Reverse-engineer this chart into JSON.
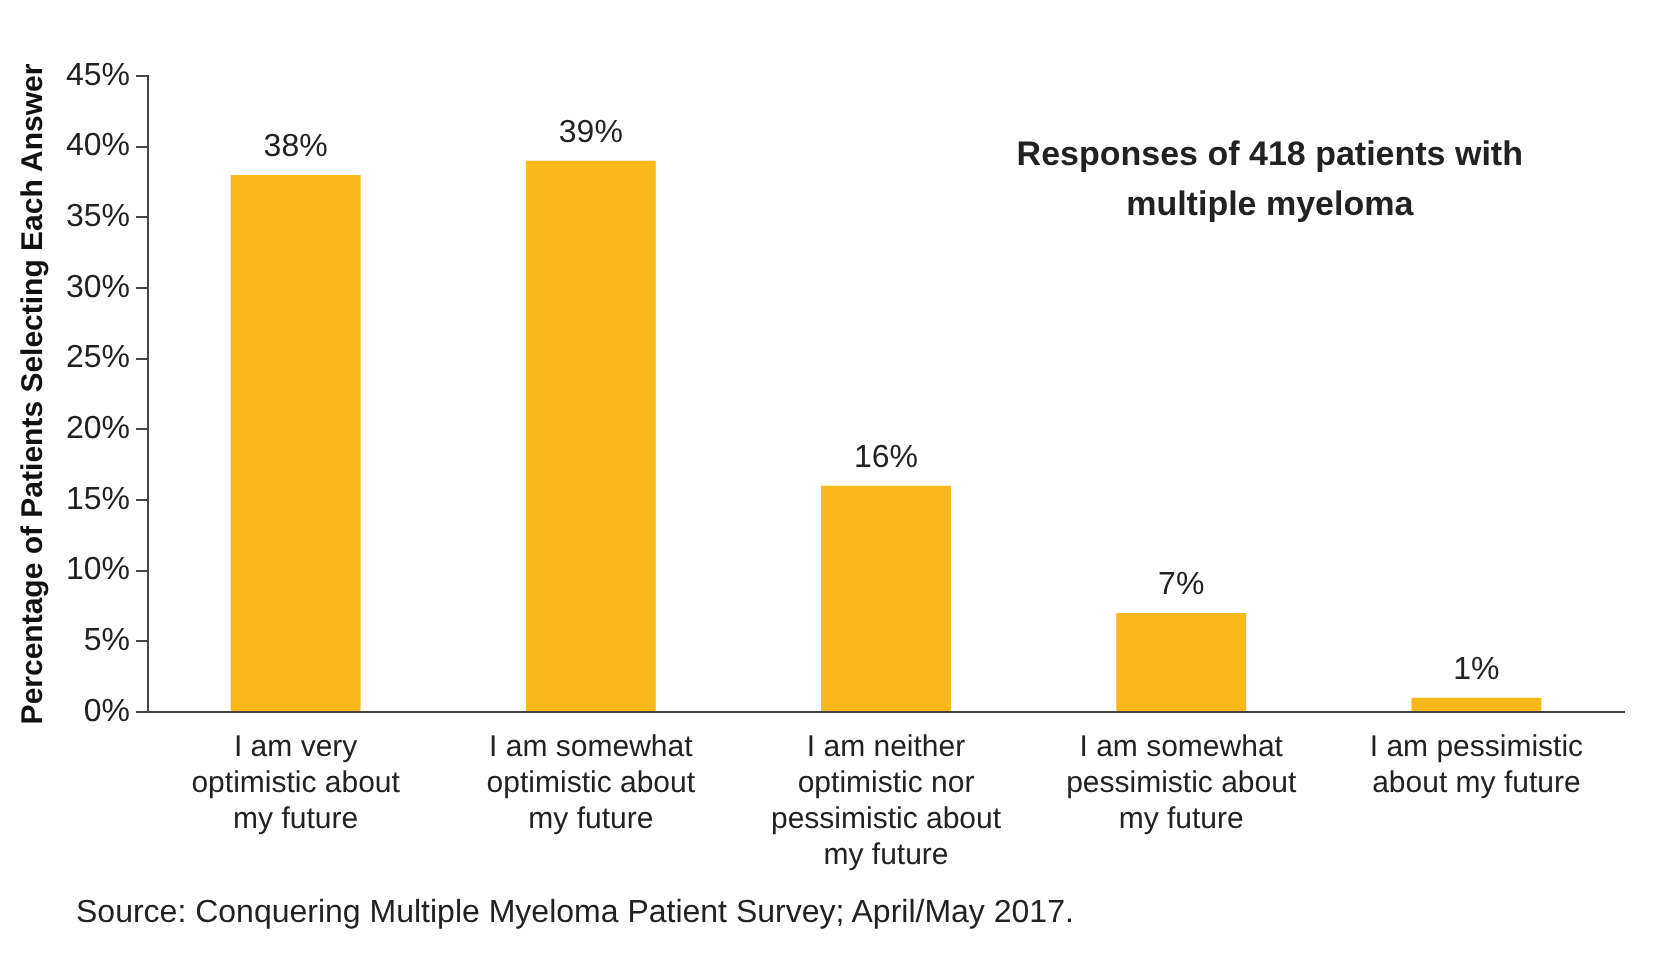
{
  "chart_data": {
    "type": "bar",
    "ylabel": "Percentage of Patients Selecting Each Answer",
    "categories": [
      "I am very optimistic about my future",
      "I am somewhat optimistic about my future",
      "I am neither optimistic nor pessimistic about my future",
      "I am somewhat pessimistic about my future",
      "I am pessimistic about my future"
    ],
    "values": [
      38,
      39,
      16,
      7,
      1
    ],
    "value_labels": [
      "38%",
      "39%",
      "16%",
      "7%",
      "1%"
    ],
    "color": "#f9b81b",
    "ylim": [
      0,
      45
    ],
    "yticks": [
      {
        "value": 0,
        "label": "0%"
      },
      {
        "value": 5,
        "label": "5%"
      },
      {
        "value": 10,
        "label": "10%"
      },
      {
        "value": 15,
        "label": "15%"
      },
      {
        "value": 20,
        "label": "20%"
      },
      {
        "value": 25,
        "label": "25%"
      },
      {
        "value": 30,
        "label": "30%"
      },
      {
        "value": 35,
        "label": "35%"
      },
      {
        "value": 40,
        "label": "40%"
      },
      {
        "value": 45,
        "label": "45%"
      }
    ],
    "grid": false,
    "legend": false,
    "annotations": [
      "Responses of 418 patients with multiple myeloma",
      "Source: Conquering Multiple Myeloma Patient Survey; April/May 2017."
    ]
  }
}
